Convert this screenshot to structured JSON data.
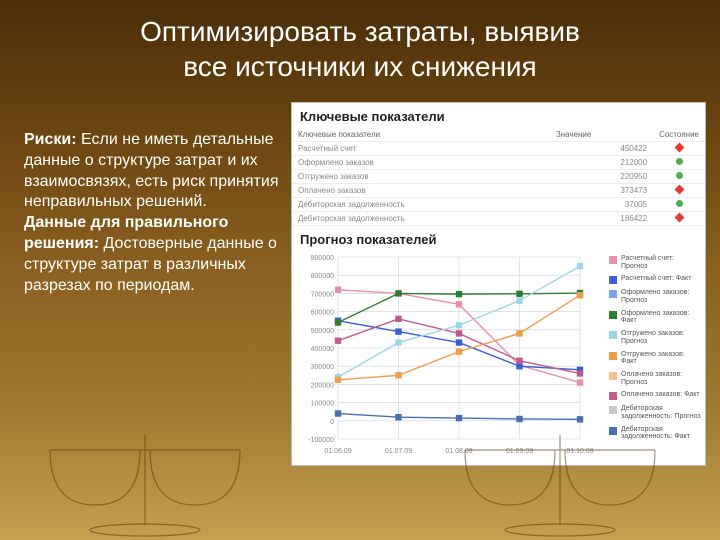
{
  "title_line1": "Оптимизировать затраты, выявив",
  "title_line2": "все источники их снижения",
  "left": {
    "risks_label": "Риски:",
    "risks_text": " Если не иметь детальные данные о структуре затрат и их взаимосвязях, есть риск принятия неправильных решений.",
    "data_label": "Данные для правильного решения:",
    "data_text": " Достоверные данные о структуре затрат в различных разрезах по периодам."
  },
  "panel": {
    "kpi_title": "Ключевые показатели",
    "forecast_title": "Прогноз показателей",
    "columns": [
      "Ключевые показатели",
      "Значение",
      "Состояние"
    ],
    "rows": [
      {
        "name": "Расчетный счет",
        "value": "450422",
        "good": false
      },
      {
        "name": "Оформлено заказов",
        "value": "212000",
        "good": true
      },
      {
        "name": "Отгружено заказов",
        "value": "220950",
        "good": true
      },
      {
        "name": "Оплачено заказов",
        "value": "373473",
        "good": false
      },
      {
        "name": "Дебиторская задолженность",
        "value": "37005",
        "good": true
      },
      {
        "name": "Дебиторская задолженность",
        "value": "186422",
        "good": false
      }
    ]
  },
  "chart": {
    "xlabels": [
      "01.06.09",
      "01.07.09",
      "01.08.09",
      "01.09.09",
      "01.10.09"
    ],
    "ylim": [
      -100000,
      900000
    ],
    "ytick_step": 100000,
    "yticks": [
      "900000",
      "800000",
      "700000",
      "600000",
      "500000",
      "400000",
      "300000",
      "200000",
      "100000",
      "0",
      "-100000"
    ],
    "background": "#ffffff",
    "grid_color": "#c9d2e0",
    "line_width": 1.4,
    "marker_size": 3.2,
    "legend_items": [
      {
        "label": "Расчетный счет: Прогноз",
        "color": "#e98fae"
      },
      {
        "label": "Расчетный счет: Факт",
        "color": "#3a5fd9"
      },
      {
        "label": "Оформлено заказов: Прогноз",
        "color": "#7aa6e8"
      },
      {
        "label": "Оформлено заказов: Факт",
        "color": "#2e7d32"
      },
      {
        "label": "Отгружено заказов: Прогноз",
        "color": "#9ad7e8"
      },
      {
        "label": "Отгружено заказов: Факт",
        "color": "#f19c4a"
      },
      {
        "label": "Оплачено заказов: Прогноз",
        "color": "#f5c28e"
      },
      {
        "label": "Оплачено заказов: Факт",
        "color": "#c05b8e"
      },
      {
        "label": "Дебиторская задолженность: Прогноз",
        "color": "#c8c8c8"
      },
      {
        "label": "Дебиторская задолженность: Факт",
        "color": "#4a6fb0"
      }
    ],
    "series": [
      {
        "color": "#e98fae",
        "points": [
          720000,
          700000,
          640000,
          305000,
          210000
        ]
      },
      {
        "color": "#3a5fd9",
        "points": [
          550000,
          490000,
          430000,
          300000,
          280000
        ]
      },
      {
        "color": "#2e7d32",
        "points": [
          540000,
          700000,
          696000,
          698000,
          702000
        ]
      },
      {
        "color": "#c05b8e",
        "points": [
          440000,
          560000,
          480000,
          330000,
          260000
        ]
      },
      {
        "color": "#9ad7e8",
        "points": [
          240000,
          430000,
          525000,
          660000,
          850000
        ]
      },
      {
        "color": "#f19c4a",
        "points": [
          225000,
          250000,
          380000,
          480000,
          690000
        ]
      },
      {
        "color": "#4a6fb0",
        "points": [
          40000,
          20000,
          15000,
          10000,
          8000
        ]
      }
    ]
  },
  "colors": {
    "bg_top": "#4a2e0a",
    "bg_bottom": "#c4a050",
    "text": "#ffffff",
    "panel_bg": "#ffffff"
  }
}
